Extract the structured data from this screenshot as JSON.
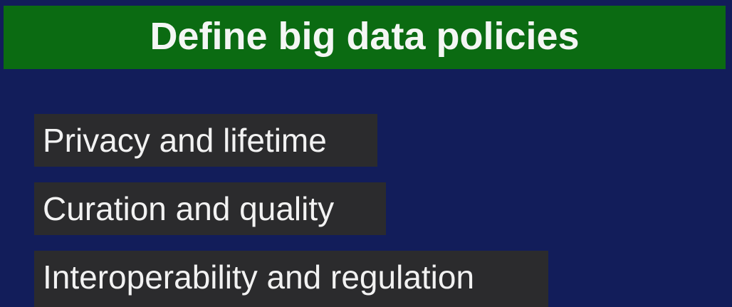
{
  "slide": {
    "title": "Define big data policies",
    "bullets": [
      "Privacy and lifetime",
      "Curation and quality",
      "Interoperability and regulation"
    ]
  },
  "colors": {
    "background": "#121d5a",
    "title_bar": "#0b6b12",
    "bullet_box": "#2b2b2d",
    "text": "#f2f2f2"
  }
}
